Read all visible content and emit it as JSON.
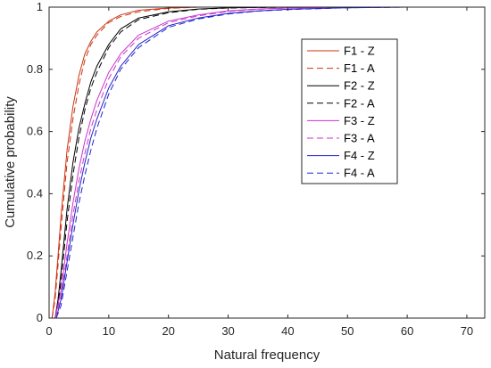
{
  "chart_data": {
    "type": "line",
    "title": "",
    "xlabel": "Natural frequency",
    "ylabel": "Cumulative probability",
    "xlim": [
      0,
      73
    ],
    "ylim": [
      0,
      1
    ],
    "xticks": [
      "0",
      "10",
      "20",
      "30",
      "40",
      "50",
      "60",
      "70"
    ],
    "yticks": [
      "0",
      "0.2",
      "0.4",
      "0.6",
      "0.8",
      "1"
    ],
    "grid": false,
    "legend_position": "top-right",
    "series": [
      {
        "name": "F1 - Z",
        "color": "#cc3311",
        "dash": "solid",
        "x": [
          0.5,
          1,
          1.5,
          2,
          3,
          4,
          5,
          6,
          7,
          8,
          10,
          12,
          15,
          20,
          25,
          30,
          40,
          73
        ],
        "y": [
          0,
          0.08,
          0.2,
          0.33,
          0.54,
          0.68,
          0.78,
          0.85,
          0.89,
          0.92,
          0.955,
          0.975,
          0.99,
          0.997,
          1,
          1,
          1,
          1
        ]
      },
      {
        "name": "F1 - A",
        "color": "#cc3311",
        "dash": "dashed",
        "x": [
          0.5,
          1,
          1.5,
          2,
          3,
          4,
          5,
          6,
          7,
          8,
          10,
          12,
          15,
          20,
          25,
          30,
          40,
          73
        ],
        "y": [
          0,
          0.06,
          0.17,
          0.29,
          0.5,
          0.64,
          0.75,
          0.83,
          0.88,
          0.91,
          0.95,
          0.97,
          0.985,
          0.996,
          1,
          1,
          1,
          1
        ]
      },
      {
        "name": "F2 - Z",
        "color": "#000000",
        "dash": "solid",
        "x": [
          1,
          1.5,
          2,
          3,
          4,
          5,
          6,
          7,
          8,
          10,
          12,
          15,
          20,
          25,
          30,
          40,
          50,
          73
        ],
        "y": [
          0,
          0.06,
          0.15,
          0.35,
          0.5,
          0.61,
          0.69,
          0.76,
          0.81,
          0.88,
          0.93,
          0.965,
          0.985,
          0.994,
          0.998,
          1,
          1,
          1
        ]
      },
      {
        "name": "F2 - A",
        "color": "#000000",
        "dash": "dashed",
        "x": [
          1,
          1.5,
          2,
          3,
          4,
          5,
          6,
          7,
          8,
          10,
          12,
          15,
          20,
          25,
          30,
          40,
          50,
          73
        ],
        "y": [
          0,
          0.04,
          0.12,
          0.31,
          0.46,
          0.58,
          0.67,
          0.74,
          0.79,
          0.87,
          0.92,
          0.96,
          0.982,
          0.993,
          0.997,
          1,
          1,
          1
        ]
      },
      {
        "name": "F3 - Z",
        "color": "#cc33cc",
        "dash": "solid",
        "x": [
          1,
          2,
          3,
          4,
          5,
          6,
          7,
          8,
          10,
          12,
          15,
          20,
          25,
          30,
          35,
          40,
          50,
          73
        ],
        "y": [
          0,
          0.09,
          0.24,
          0.37,
          0.48,
          0.57,
          0.64,
          0.7,
          0.79,
          0.85,
          0.91,
          0.955,
          0.975,
          0.988,
          0.994,
          0.997,
          1,
          1
        ]
      },
      {
        "name": "F3 - A",
        "color": "#cc33cc",
        "dash": "dashed",
        "x": [
          1,
          2,
          3,
          4,
          5,
          6,
          7,
          8,
          10,
          12,
          15,
          20,
          25,
          30,
          35,
          40,
          50,
          73
        ],
        "y": [
          0,
          0.07,
          0.2,
          0.33,
          0.44,
          0.53,
          0.61,
          0.67,
          0.77,
          0.84,
          0.9,
          0.95,
          0.972,
          0.986,
          0.993,
          0.997,
          1,
          1
        ]
      },
      {
        "name": "F4 - Z",
        "color": "#2222cc",
        "dash": "solid",
        "x": [
          1.2,
          2,
          3,
          4,
          5,
          6,
          7,
          8,
          10,
          12,
          15,
          20,
          25,
          30,
          35,
          40,
          50,
          60,
          73
        ],
        "y": [
          0,
          0.06,
          0.18,
          0.3,
          0.41,
          0.5,
          0.58,
          0.64,
          0.74,
          0.81,
          0.88,
          0.94,
          0.965,
          0.98,
          0.988,
          0.993,
          0.998,
          1,
          1
        ]
      },
      {
        "name": "F4  - A",
        "color": "#2222cc",
        "dash": "dashed",
        "x": [
          1.2,
          2,
          3,
          4,
          5,
          6,
          7,
          8,
          10,
          12,
          15,
          20,
          25,
          30,
          35,
          40,
          50,
          60,
          73
        ],
        "y": [
          0,
          0.04,
          0.15,
          0.26,
          0.37,
          0.46,
          0.54,
          0.61,
          0.72,
          0.8,
          0.87,
          0.935,
          0.962,
          0.978,
          0.987,
          0.992,
          0.998,
          1,
          1
        ]
      }
    ]
  }
}
